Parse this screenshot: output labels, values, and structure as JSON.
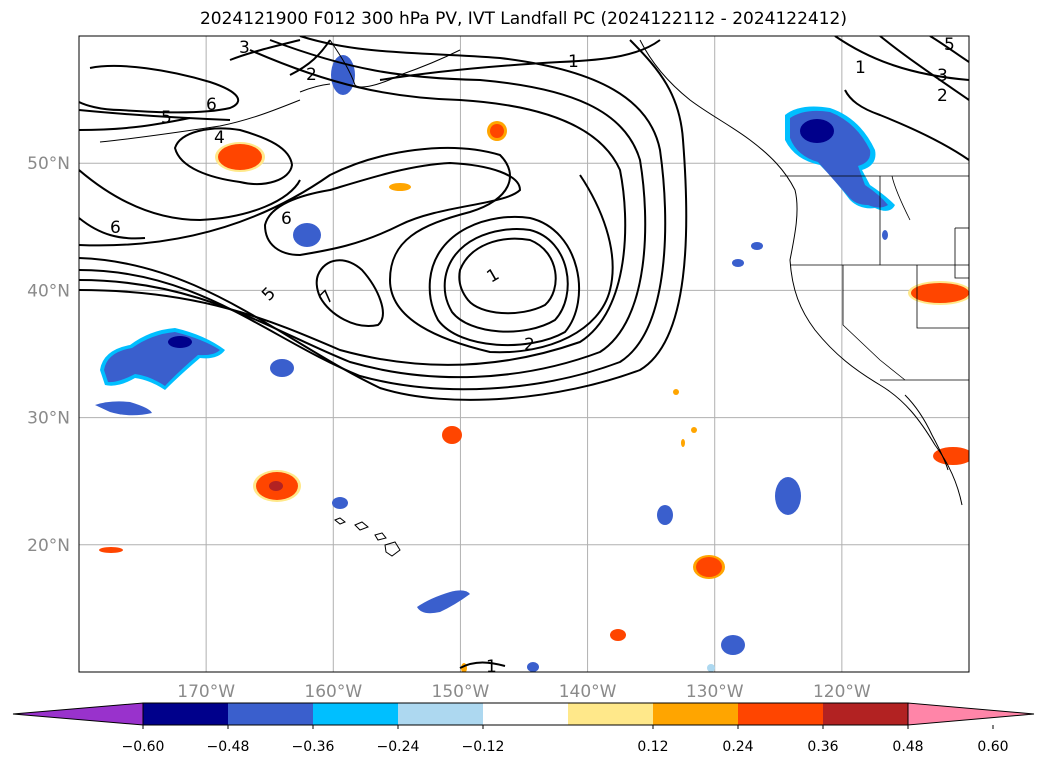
{
  "title": "2024121900 F012 300 hPa PV, IVT Landfall PC (2024122112 - 2024122412)",
  "map": {
    "lon_range": [
      -180,
      -110
    ],
    "lat_range": [
      10,
      60
    ],
    "lat_ticks": [
      {
        "value": 50,
        "label": "50°N"
      },
      {
        "value": 40,
        "label": "40°N"
      },
      {
        "value": 30,
        "label": "30°N"
      },
      {
        "value": 20,
        "label": "20°N"
      }
    ],
    "lon_ticks": [
      {
        "value": -170,
        "label": "170°W"
      },
      {
        "value": -160,
        "label": "160°W"
      },
      {
        "value": -150,
        "label": "150°W"
      },
      {
        "value": -140,
        "label": "140°W"
      },
      {
        "value": -130,
        "label": "130°W"
      },
      {
        "value": -120,
        "label": "120°W"
      }
    ],
    "contour_labels": [
      "1",
      "2",
      "3",
      "4",
      "5",
      "6",
      "7"
    ]
  },
  "colorbar": {
    "colors": [
      "#9932cc",
      "#00008b",
      "#3a5fcd",
      "#00bfff",
      "#add8f0",
      "#ffffff",
      "#ffe88a",
      "#ffa500",
      "#ff4500",
      "#b22222",
      "#ff85a8"
    ],
    "labels": [
      "−0.60",
      "−0.48",
      "−0.36",
      "−0.24",
      "−0.12",
      "0.12",
      "0.24",
      "0.36",
      "0.48",
      "0.60"
    ]
  }
}
